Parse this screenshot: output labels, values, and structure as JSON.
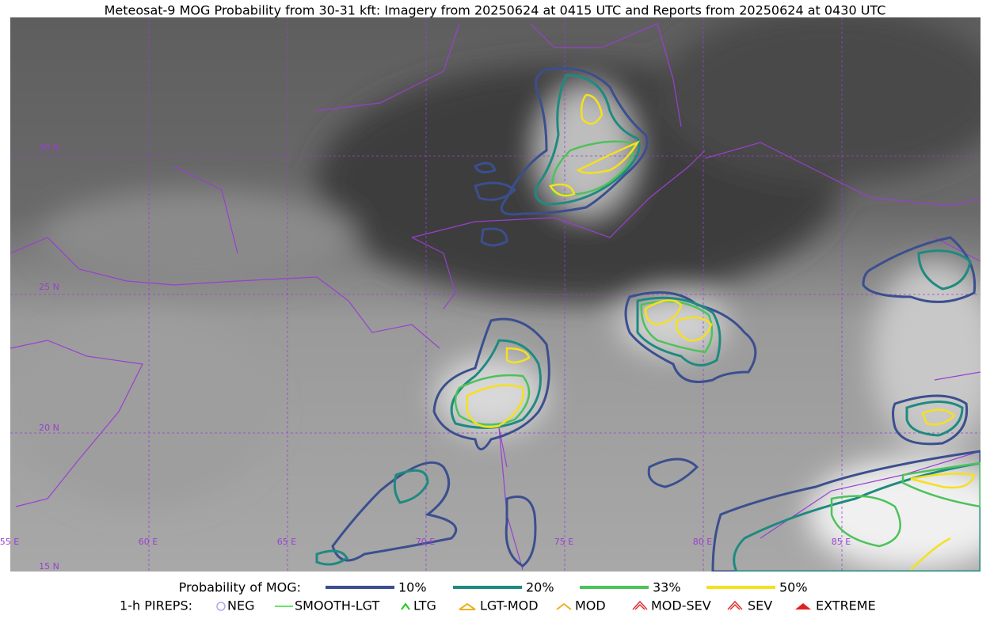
{
  "title": "Meteosat-9 MOG Probability from 30-31 kft: Imagery from 20250624 at 0415 UTC and Reports from 20250624 at 0430 UTC",
  "map": {
    "lat_labels": [
      "30 N",
      "25 N",
      "20 N",
      "15 N"
    ],
    "lon_labels": [
      "55 E",
      "60 E",
      "65 E",
      "70 E",
      "75 E",
      "80 E",
      "85 E"
    ]
  },
  "legend": {
    "probability_title": "Probability of MOG:",
    "probability_levels": [
      "10%",
      "20%",
      "33%",
      "50%"
    ],
    "pireps_title": "1-h PIREPS:",
    "pireps": [
      "NEG",
      "SMOOTH-LGT",
      "LTG",
      "LGT-MOD",
      "MOD",
      "MOD-SEV",
      "SEV",
      "EXTREME"
    ]
  }
}
